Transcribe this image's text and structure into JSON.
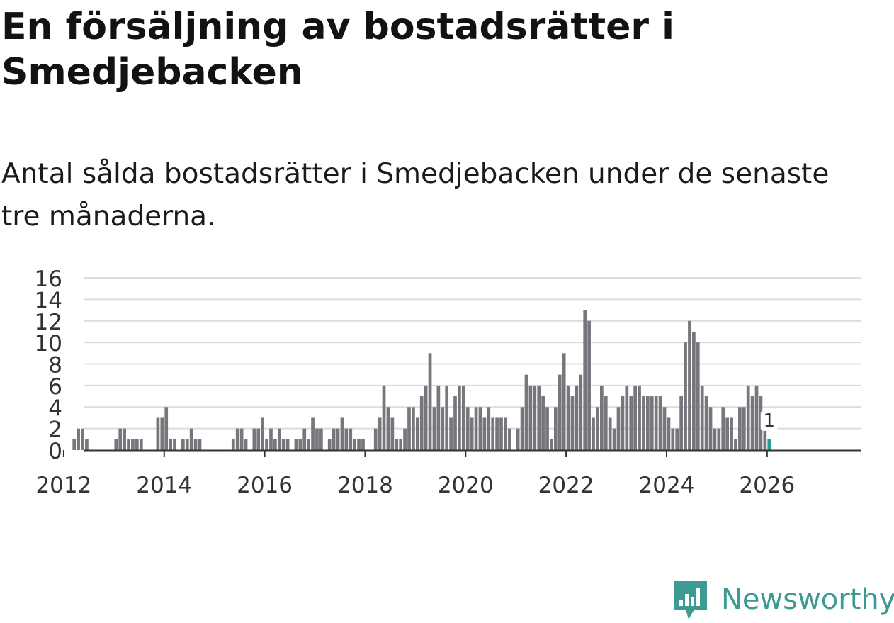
{
  "title": "En försäljning av bostadsrätter i Smedjebacken",
  "subtitle": "Antal sålda bostadsrätter i Smedjebacken under de senaste tre månaderna.",
  "brand": {
    "name": "Newsworthy",
    "icon": "newsworthy-logo-icon"
  },
  "colors": {
    "bar": "#77767c",
    "highlight": "#1f9e94",
    "grid": "#dcdcdc",
    "axis": "#333333",
    "brand": "#3c9a92"
  },
  "chart_data": {
    "type": "bar",
    "title": "Antal sålda bostadsrätter i Smedjebacken",
    "xlabel": "",
    "ylabel": "",
    "ylim": [
      0,
      16
    ],
    "y_ticks": [
      0,
      2,
      4,
      6,
      8,
      10,
      12,
      14,
      16
    ],
    "x_ticks": [
      "2012",
      "2014",
      "2016",
      "2018",
      "2020",
      "2022",
      "2024",
      "2026"
    ],
    "start": "2011-01",
    "grid": true,
    "highlight": {
      "index": 180,
      "label": "1"
    },
    "values": [
      0,
      0,
      0,
      0,
      0,
      0,
      0,
      0,
      0,
      0,
      0,
      0,
      0,
      0,
      1,
      2,
      2,
      1,
      0,
      0,
      0,
      0,
      0,
      0,
      1,
      2,
      2,
      1,
      1,
      1,
      1,
      0,
      0,
      0,
      3,
      3,
      4,
      1,
      1,
      0,
      1,
      1,
      2,
      1,
      1,
      0,
      0,
      0,
      0,
      0,
      0,
      0,
      1,
      2,
      2,
      1,
      0,
      2,
      2,
      3,
      1,
      2,
      1,
      2,
      1,
      1,
      0,
      1,
      1,
      2,
      1,
      3,
      2,
      2,
      0,
      1,
      2,
      2,
      3,
      2,
      2,
      1,
      1,
      1,
      0,
      0,
      2,
      3,
      6,
      4,
      3,
      1,
      1,
      2,
      4,
      4,
      3,
      5,
      6,
      9,
      4,
      6,
      4,
      6,
      3,
      5,
      6,
      6,
      4,
      3,
      4,
      4,
      3,
      4,
      3,
      3,
      3,
      3,
      2,
      0,
      2,
      4,
      7,
      6,
      6,
      6,
      5,
      4,
      1,
      4,
      7,
      9,
      6,
      5,
      6,
      7,
      13,
      12,
      3,
      4,
      6,
      5,
      3,
      2,
      4,
      5,
      6,
      5,
      6,
      6,
      5,
      5,
      5,
      5,
      5,
      4,
      3,
      2,
      2,
      5,
      10,
      12,
      11,
      10,
      6,
      5,
      4,
      2,
      2,
      4,
      3,
      3,
      1,
      4,
      4,
      6,
      5,
      6,
      5,
      3,
      1
    ]
  }
}
